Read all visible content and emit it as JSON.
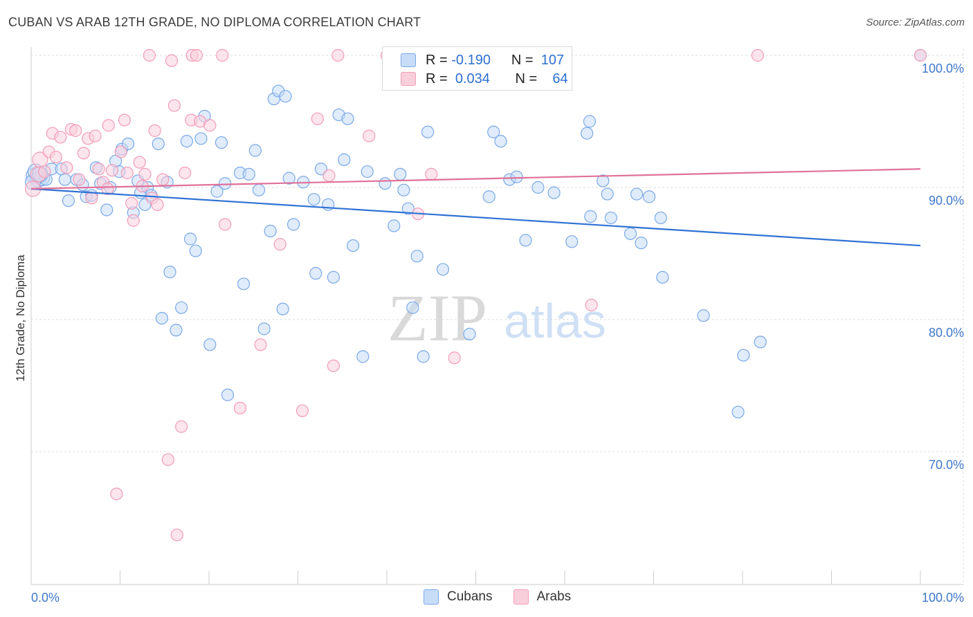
{
  "title": "CUBAN VS ARAB 12TH GRADE, NO DIPLOMA CORRELATION CHART",
  "source": "Source: ZipAtlas.com",
  "watermark": {
    "zip": "ZIP",
    "atlas": "atlas"
  },
  "legend": {
    "rows": [
      {
        "r_label": "R =",
        "r_value": "-0.190",
        "n_label": "N =",
        "n_value": "107",
        "color": "#7aa8e8",
        "fill": "#c7dcf7"
      },
      {
        "r_label": "R =",
        "r_value": "0.034",
        "n_label": "N =",
        "n_value": "64",
        "color": "#f29cb8",
        "fill": "#f9cfdc"
      }
    ]
  },
  "bottom_legend": [
    {
      "label": "Cubans",
      "color": "#7aa8e8",
      "fill": "#c7dcf7"
    },
    {
      "label": "Arabs",
      "color": "#f29cb8",
      "fill": "#f9cfdc"
    }
  ],
  "chart_data": {
    "type": "scatter",
    "title": "CUBAN VS ARAB 12TH GRADE, NO DIPLOMA CORRELATION CHART",
    "xlabel": "",
    "ylabel": "12th Grade, No Diploma",
    "xlim": [
      0,
      100
    ],
    "ylim": [
      61,
      101.5
    ],
    "x_tick_labels": [
      {
        "value": 0,
        "label": "0.0%"
      },
      {
        "value": 100,
        "label": "100.0%"
      }
    ],
    "y_tick_labels": [
      {
        "value": 100,
        "label": "100.0%"
      },
      {
        "value": 90,
        "label": "90.0%"
      },
      {
        "value": 80,
        "label": "80.0%"
      },
      {
        "value": 70,
        "label": "70.0%"
      }
    ],
    "grid": true,
    "series": [
      {
        "name": "Cubans",
        "color": "#2f72d4",
        "marker_fill": "#c7dcf7",
        "marker_stroke": "#7aa8e8",
        "trend": {
          "x": [
            0,
            100
          ],
          "y": [
            89.9,
            85.6
          ]
        },
        "points": [
          [
            0.3,
            90.9
          ],
          [
            0.8,
            90.6
          ],
          [
            1.2,
            90.7
          ],
          [
            1.7,
            90.6
          ],
          [
            2.3,
            91.4
          ],
          [
            3.4,
            91.4
          ],
          [
            3.8,
            90.6
          ],
          [
            4.2,
            89.0
          ],
          [
            5.1,
            90.6
          ],
          [
            5.8,
            90.2
          ],
          [
            6.2,
            89.3
          ],
          [
            6.8,
            89.4
          ],
          [
            7.3,
            91.5
          ],
          [
            7.8,
            90.3
          ],
          [
            8.5,
            88.3
          ],
          [
            8.9,
            90.0
          ],
          [
            9.5,
            92.0
          ],
          [
            9.9,
            91.2
          ],
          [
            10.2,
            92.9
          ],
          [
            10.9,
            93.3
          ],
          [
            11.5,
            88.1
          ],
          [
            12.0,
            90.5
          ],
          [
            12.3,
            89.6
          ],
          [
            12.8,
            88.7
          ],
          [
            13.1,
            90.0
          ],
          [
            13.5,
            89.4
          ],
          [
            14.3,
            93.3
          ],
          [
            14.7,
            80.1
          ],
          [
            15.3,
            90.4
          ],
          [
            15.6,
            83.6
          ],
          [
            16.3,
            79.2
          ],
          [
            16.9,
            80.9
          ],
          [
            17.5,
            93.5
          ],
          [
            17.9,
            86.1
          ],
          [
            18.5,
            85.2
          ],
          [
            19.1,
            93.7
          ],
          [
            19.5,
            95.4
          ],
          [
            20.1,
            78.1
          ],
          [
            20.9,
            89.7
          ],
          [
            21.4,
            93.4
          ],
          [
            21.8,
            90.3
          ],
          [
            22.1,
            74.3
          ],
          [
            23.5,
            91.1
          ],
          [
            23.9,
            82.7
          ],
          [
            24.5,
            91.0
          ],
          [
            25.2,
            92.8
          ],
          [
            25.6,
            89.8
          ],
          [
            26.2,
            79.3
          ],
          [
            26.9,
            86.7
          ],
          [
            27.3,
            96.7
          ],
          [
            27.8,
            97.3
          ],
          [
            28.3,
            80.8
          ],
          [
            28.6,
            96.9
          ],
          [
            29.0,
            90.7
          ],
          [
            29.5,
            87.2
          ],
          [
            30.6,
            90.4
          ],
          [
            31.8,
            89.1
          ],
          [
            32.0,
            83.5
          ],
          [
            32.6,
            91.4
          ],
          [
            33.4,
            88.7
          ],
          [
            34.0,
            83.2
          ],
          [
            34.6,
            95.5
          ],
          [
            35.2,
            92.1
          ],
          [
            35.6,
            95.2
          ],
          [
            36.2,
            85.6
          ],
          [
            37.3,
            77.2
          ],
          [
            37.8,
            91.2
          ],
          [
            39.8,
            90.3
          ],
          [
            40.8,
            87.1
          ],
          [
            41.5,
            91.0
          ],
          [
            41.9,
            89.8
          ],
          [
            42.4,
            88.4
          ],
          [
            42.9,
            80.9
          ],
          [
            43.4,
            84.8
          ],
          [
            44.1,
            77.2
          ],
          [
            44.6,
            94.2
          ],
          [
            46.3,
            83.8
          ],
          [
            49.3,
            78.9
          ],
          [
            51.5,
            89.3
          ],
          [
            52.0,
            94.2
          ],
          [
            52.8,
            93.5
          ],
          [
            53.8,
            90.6
          ],
          [
            54.6,
            90.8
          ],
          [
            55.6,
            86.0
          ],
          [
            57.0,
            90.0
          ],
          [
            58.8,
            89.6
          ],
          [
            60.8,
            85.9
          ],
          [
            62.5,
            94.1
          ],
          [
            62.8,
            95.0
          ],
          [
            62.9,
            87.8
          ],
          [
            64.3,
            90.5
          ],
          [
            64.8,
            89.5
          ],
          [
            65.2,
            87.7
          ],
          [
            67.4,
            86.5
          ],
          [
            68.1,
            89.5
          ],
          [
            68.6,
            85.8
          ],
          [
            69.5,
            89.3
          ],
          [
            70.8,
            87.7
          ],
          [
            71.0,
            83.2
          ],
          [
            75.6,
            80.3
          ],
          [
            79.5,
            73.0
          ],
          [
            80.1,
            77.3
          ],
          [
            82.0,
            78.3
          ],
          [
            100.0,
            100.0
          ],
          [
            0.2,
            90.4
          ],
          [
            0.5,
            91.2
          ],
          [
            1.0,
            91.0
          ]
        ]
      },
      {
        "name": "Arabs",
        "color": "#e0709a",
        "marker_fill": "#f9cfdc",
        "marker_stroke": "#f29cb8",
        "trend": {
          "x": [
            0,
            100
          ],
          "y": [
            89.9,
            91.4
          ]
        },
        "points": [
          [
            0.2,
            89.9
          ],
          [
            0.8,
            91.0
          ],
          [
            1.0,
            92.1
          ],
          [
            1.5,
            91.2
          ],
          [
            2.0,
            92.7
          ],
          [
            2.4,
            94.1
          ],
          [
            2.8,
            92.3
          ],
          [
            3.3,
            93.8
          ],
          [
            4.0,
            91.5
          ],
          [
            4.5,
            94.4
          ],
          [
            5.0,
            94.3
          ],
          [
            5.4,
            90.6
          ],
          [
            5.9,
            92.6
          ],
          [
            6.4,
            93.7
          ],
          [
            6.8,
            89.2
          ],
          [
            7.2,
            93.9
          ],
          [
            7.6,
            91.4
          ],
          [
            8.1,
            90.4
          ],
          [
            8.6,
            89.9
          ],
          [
            8.7,
            94.7
          ],
          [
            9.1,
            91.3
          ],
          [
            9.6,
            66.8
          ],
          [
            10.1,
            92.7
          ],
          [
            10.5,
            95.1
          ],
          [
            10.8,
            91.1
          ],
          [
            11.3,
            88.8
          ],
          [
            11.5,
            87.5
          ],
          [
            12.2,
            91.9
          ],
          [
            12.5,
            90.1
          ],
          [
            12.8,
            91.0
          ],
          [
            13.3,
            100.0
          ],
          [
            13.6,
            89.2
          ],
          [
            13.9,
            94.3
          ],
          [
            14.2,
            88.7
          ],
          [
            14.8,
            90.6
          ],
          [
            15.4,
            69.4
          ],
          [
            15.8,
            99.6
          ],
          [
            16.1,
            96.2
          ],
          [
            16.4,
            63.7
          ],
          [
            16.9,
            71.9
          ],
          [
            17.3,
            91.1
          ],
          [
            18.0,
            95.1
          ],
          [
            18.1,
            100.0
          ],
          [
            18.6,
            100.0
          ],
          [
            19.0,
            95.0
          ],
          [
            20.1,
            94.7
          ],
          [
            21.5,
            100.0
          ],
          [
            21.8,
            87.2
          ],
          [
            23.5,
            73.3
          ],
          [
            25.8,
            78.1
          ],
          [
            28.0,
            85.7
          ],
          [
            30.5,
            73.1
          ],
          [
            32.2,
            95.2
          ],
          [
            33.5,
            90.9
          ],
          [
            34.0,
            76.5
          ],
          [
            34.5,
            100.0
          ],
          [
            38.0,
            93.9
          ],
          [
            40.0,
            100.0
          ],
          [
            43.5,
            88.0
          ],
          [
            45.0,
            91.0
          ],
          [
            47.6,
            77.1
          ],
          [
            63.0,
            81.1
          ],
          [
            81.7,
            100.0
          ],
          [
            100.0,
            100.0
          ]
        ]
      }
    ]
  }
}
